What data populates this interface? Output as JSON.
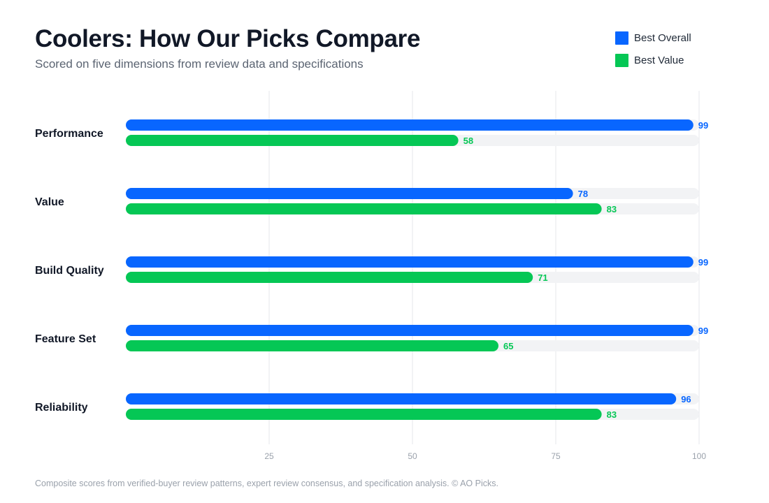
{
  "header": {
    "title": "Coolers: How Our Picks Compare",
    "subtitle": "Scored on five dimensions from review data and specifications"
  },
  "legend": [
    {
      "label": "Best Overall",
      "color": "#0866ff"
    },
    {
      "label": "Best Value",
      "color": "#05c755"
    }
  ],
  "chart_data": {
    "type": "bar",
    "orientation": "horizontal",
    "title": "Coolers: How Our Picks Compare",
    "subtitle": "Scored on five dimensions from review data and specifications",
    "categories": [
      "Performance",
      "Value",
      "Build Quality",
      "Feature Set",
      "Reliability"
    ],
    "series": [
      {
        "name": "Best Overall",
        "color": "#0866ff",
        "values": [
          99,
          78,
          99,
          99,
          96
        ]
      },
      {
        "name": "Best Value",
        "color": "#05c755",
        "values": [
          58,
          83,
          71,
          65,
          83
        ]
      }
    ],
    "xlim": [
      0,
      100
    ],
    "xticks": [
      25,
      50,
      75,
      100
    ],
    "grid": true,
    "legend_position": "top-right",
    "data_labels": true
  },
  "footer": {
    "note": "Composite scores from verified-buyer review patterns, expert review consensus, and specification analysis. © AO Picks."
  }
}
